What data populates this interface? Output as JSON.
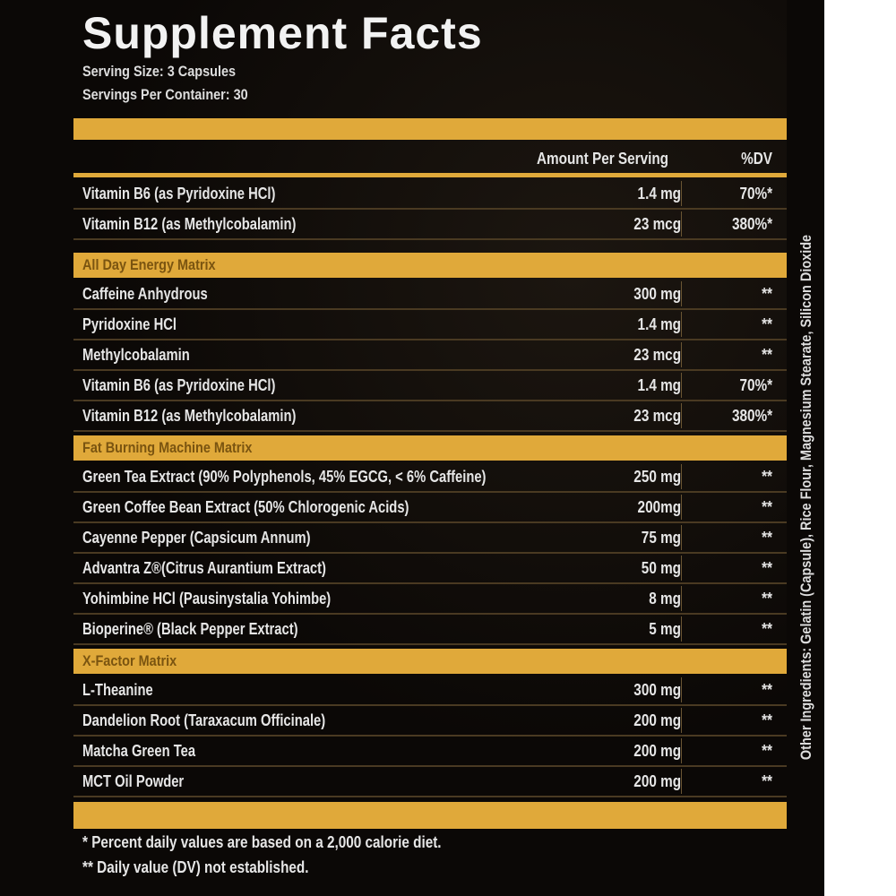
{
  "title": "Supplement Facts",
  "serving_size": "Serving Size: 3 Capsules",
  "servings_per_container": "Servings Per Container: 30",
  "header": {
    "amount": "Amount Per Serving",
    "dv": "%DV"
  },
  "top_rows": [
    {
      "name": "Vitamin B6 (as Pyridoxine HCl)",
      "amount": "1.4 mg",
      "dv": "70%*"
    },
    {
      "name": "Vitamin B12 (as Methylcobalamin)",
      "amount": "23 mcg",
      "dv": "380%*"
    }
  ],
  "sections": [
    {
      "title": "All Day Energy Matrix",
      "rows": [
        {
          "name": "Caffeine Anhydrous",
          "amount": "300 mg",
          "dv": "**"
        },
        {
          "name": "Pyridoxine HCl",
          "amount": "1.4 mg",
          "dv": "**"
        },
        {
          "name": "Methylcobalamin",
          "amount": "23 mcg",
          "dv": "**"
        },
        {
          "name": "Vitamin B6 (as Pyridoxine HCl)",
          "amount": "1.4 mg",
          "dv": "70%*"
        },
        {
          "name": "Vitamin B12 (as Methylcobalamin)",
          "amount": "23 mcg",
          "dv": "380%*"
        }
      ]
    },
    {
      "title": "Fat Burning Machine Matrix",
      "rows": [
        {
          "name": "Green Tea Extract (90% Polyphenols, 45% EGCG, < 6% Caffeine)",
          "amount": "250 mg",
          "dv": "**"
        },
        {
          "name": "Green Coffee Bean Extract (50% Chlorogenic Acids)",
          "amount": "200mg",
          "dv": "**"
        },
        {
          "name": "Cayenne Pepper (Capsicum Annum)",
          "amount": "75 mg",
          "dv": "**"
        },
        {
          "name": "Advantra Z®(Citrus Aurantium Extract)",
          "amount": "50 mg",
          "dv": "**"
        },
        {
          "name": "Yohimbine HCl (Pausinystalia Yohimbe)",
          "amount": "8 mg",
          "dv": "**"
        },
        {
          "name": "Bioperine® (Black Pepper Extract)",
          "amount": "5 mg",
          "dv": "**"
        }
      ]
    },
    {
      "title": "X-Factor Matrix",
      "rows": [
        {
          "name": "L-Theanine",
          "amount": "300 mg",
          "dv": "**"
        },
        {
          "name": "Dandelion Root (Taraxacum Officinale)",
          "amount": "200 mg",
          "dv": "**"
        },
        {
          "name": "Matcha Green Tea",
          "amount": "200 mg",
          "dv": "**"
        },
        {
          "name": "MCT Oil Powder",
          "amount": "200 mg",
          "dv": "**"
        }
      ]
    }
  ],
  "footnotes": [
    "* Percent daily values are based on a 2,000 calorie diet.",
    "** Daily value (DV) not established."
  ],
  "other_ingredients": "Other Ingredients: Gelatin (Capsule), Rice Flour, Magnesium Stearate, Silicon Dioxide",
  "colors": {
    "background": "#0b0806",
    "gold": "#e0a93a",
    "text": "#e6e6e6"
  }
}
